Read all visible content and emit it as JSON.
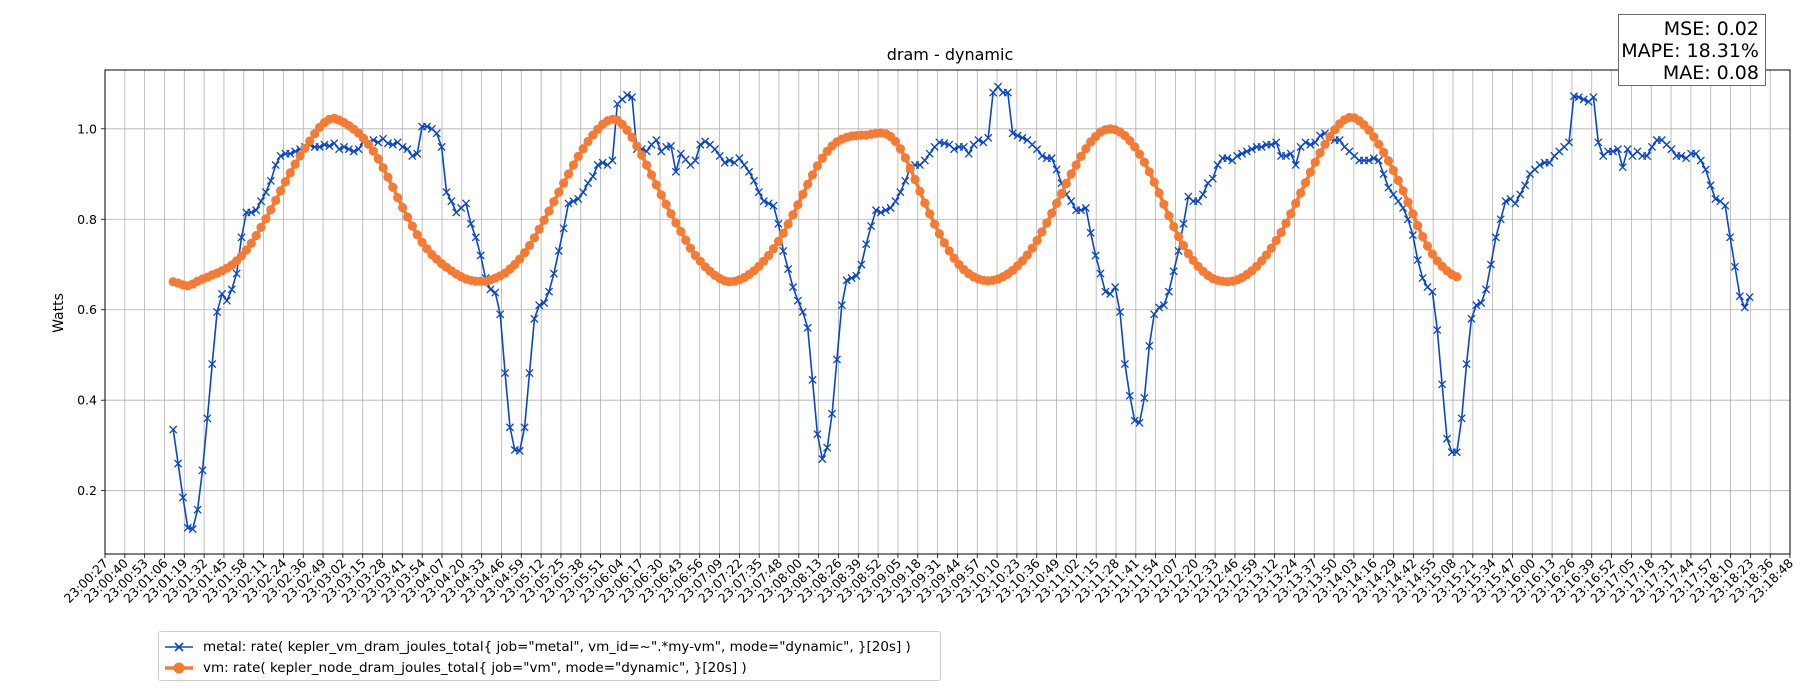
{
  "chart_data": {
    "type": "line",
    "title": "dram - dynamic",
    "xlabel": "",
    "ylabel": "Watts",
    "ylim": [
      0.06,
      1.13
    ],
    "grid": true,
    "y_ticks": [
      "0.2",
      "0.4",
      "0.6",
      "0.8",
      "1.0"
    ],
    "x_ticks": [
      "23:00:27",
      "23:00:40",
      "23:00:53",
      "23:01:06",
      "23:01:19",
      "23:01:32",
      "23:01:45",
      "23:01:58",
      "23:02:11",
      "23:02:24",
      "23:02:36",
      "23:02:49",
      "23:03:02",
      "23:03:15",
      "23:03:28",
      "23:03:41",
      "23:03:54",
      "23:04:07",
      "23:04:20",
      "23:04:33",
      "23:04:46",
      "23:04:59",
      "23:05:12",
      "23:05:25",
      "23:05:38",
      "23:05:51",
      "23:06:04",
      "23:06:17",
      "23:06:30",
      "23:06:43",
      "23:06:56",
      "23:07:09",
      "23:07:22",
      "23:07:35",
      "23:07:48",
      "23:08:00",
      "23:08:13",
      "23:08:26",
      "23:08:39",
      "23:08:52",
      "23:09:05",
      "23:09:18",
      "23:09:31",
      "23:09:44",
      "23:09:57",
      "23:10:10",
      "23:10:23",
      "23:10:36",
      "23:10:49",
      "23:11:02",
      "23:11:15",
      "23:11:28",
      "23:11:41",
      "23:11:54",
      "23:12:07",
      "23:12:20",
      "23:12:33",
      "23:12:46",
      "23:12:59",
      "23:13:12",
      "23:13:24",
      "23:13:37",
      "23:13:50",
      "23:14:03",
      "23:14:16",
      "23:14:29",
      "23:14:42",
      "23:14:55",
      "23:15:08",
      "23:15:21",
      "23:15:34",
      "23:15:47",
      "23:16:00",
      "23:16:13",
      "23:16:26",
      "23:16:39",
      "23:16:52",
      "23:17:05",
      "23:17:18",
      "23:17:31",
      "23:17:44",
      "23:17:57",
      "23:18:10",
      "23:18:23",
      "23:18:36",
      "23:18:48"
    ],
    "x_index_range": [
      0,
      85
    ],
    "legend_placement": "bottom-left (below plot)",
    "series": [
      {
        "name": "metal: rate( kepler_vm_dram_joules_total{ job=\"metal\", vm_id=~\".*my-vm\", mode=\"dynamic\", }[20s] )",
        "color": "#0a46c8",
        "marker": "x",
        "x_start": 3.44,
        "x_step": 0.2462,
        "values": [
          0.335,
          0.26,
          0.185,
          0.118,
          0.115,
          0.158,
          0.245,
          0.36,
          0.48,
          0.595,
          0.635,
          0.62,
          0.645,
          0.68,
          0.76,
          0.815,
          0.815,
          0.82,
          0.84,
          0.86,
          0.885,
          0.92,
          0.94,
          0.945,
          0.945,
          0.95,
          0.955,
          0.96,
          0.965,
          0.96,
          0.96,
          0.965,
          0.962,
          0.968,
          0.955,
          0.96,
          0.955,
          0.95,
          0.955,
          0.972,
          0.968,
          0.975,
          0.97,
          0.978,
          0.968,
          0.965,
          0.97,
          0.96,
          0.955,
          0.94,
          0.945,
          1.005,
          1.005,
          1.0,
          0.99,
          0.96,
          0.86,
          0.84,
          0.815,
          0.825,
          0.835,
          0.79,
          0.76,
          0.72,
          0.67,
          0.645,
          0.638,
          0.59,
          0.46,
          0.34,
          0.29,
          0.288,
          0.34,
          0.46,
          0.58,
          0.61,
          0.615,
          0.64,
          0.68,
          0.73,
          0.78,
          0.835,
          0.84,
          0.845,
          0.86,
          0.88,
          0.895,
          0.92,
          0.925,
          0.92,
          0.93,
          1.055,
          1.065,
          1.075,
          1.07,
          0.955,
          0.955,
          0.95,
          0.965,
          0.975,
          0.95,
          0.96,
          0.962,
          0.905,
          0.945,
          0.932,
          0.92,
          0.93,
          0.965,
          0.972,
          0.965,
          0.955,
          0.94,
          0.925,
          0.93,
          0.925,
          0.935,
          0.92,
          0.905,
          0.885,
          0.86,
          0.84,
          0.835,
          0.83,
          0.79,
          0.73,
          0.69,
          0.65,
          0.62,
          0.595,
          0.56,
          0.445,
          0.325,
          0.27,
          0.295,
          0.37,
          0.49,
          0.61,
          0.665,
          0.67,
          0.675,
          0.7,
          0.745,
          0.785,
          0.82,
          0.815,
          0.82,
          0.825,
          0.84,
          0.86,
          0.885,
          0.912,
          0.92,
          0.92,
          0.93,
          0.945,
          0.96,
          0.97,
          0.968,
          0.965,
          0.955,
          0.96,
          0.96,
          0.945,
          0.965,
          0.975,
          0.97,
          0.98,
          1.08,
          1.093,
          1.08,
          1.08,
          0.99,
          0.985,
          0.98,
          0.975,
          0.965,
          0.955,
          0.94,
          0.935,
          0.935,
          0.91,
          0.88,
          0.855,
          0.84,
          0.82,
          0.82,
          0.825,
          0.77,
          0.72,
          0.68,
          0.64,
          0.635,
          0.65,
          0.595,
          0.48,
          0.41,
          0.355,
          0.35,
          0.405,
          0.52,
          0.59,
          0.605,
          0.61,
          0.64,
          0.685,
          0.73,
          0.79,
          0.85,
          0.84,
          0.84,
          0.855,
          0.88,
          0.89,
          0.92,
          0.935,
          0.935,
          0.93,
          0.94,
          0.945,
          0.95,
          0.955,
          0.96,
          0.96,
          0.965,
          0.965,
          0.97,
          0.94,
          0.94,
          0.945,
          0.92,
          0.96,
          0.97,
          0.965,
          0.97,
          0.985,
          0.99,
          0.98,
          0.975,
          0.975,
          0.96,
          0.95,
          0.94,
          0.93,
          0.93,
          0.93,
          0.935,
          0.93,
          0.9,
          0.87,
          0.855,
          0.84,
          0.825,
          0.8,
          0.765,
          0.71,
          0.67,
          0.65,
          0.64,
          0.555,
          0.435,
          0.315,
          0.285,
          0.285,
          0.36,
          0.48,
          0.58,
          0.61,
          0.615,
          0.645,
          0.7,
          0.76,
          0.8,
          0.84,
          0.845,
          0.835,
          0.855,
          0.875,
          0.9,
          0.91,
          0.92,
          0.925,
          0.925,
          0.94,
          0.95,
          0.96,
          0.97,
          1.072,
          1.07,
          1.065,
          1.06,
          1.07,
          0.97,
          0.94,
          0.95,
          0.95,
          0.955,
          0.915,
          0.955,
          0.94,
          0.95,
          0.94,
          0.94,
          0.96,
          0.975,
          0.975,
          0.965,
          0.955,
          0.94,
          0.94,
          0.935,
          0.945,
          0.945,
          0.93,
          0.91,
          0.875,
          0.845,
          0.84,
          0.83,
          0.76,
          0.695,
          0.63,
          0.605,
          0.628
        ]
      },
      {
        "name": "vm: rate( kepler_node_dram_joules_total{ job=\"vm\", mode=\"dynamic\", }[20s] )",
        "color": "#f57b35",
        "marker": "o",
        "x_start": 3.44,
        "x_step": 0.2462,
        "values": [
          0.662,
          0.659,
          0.655,
          0.653,
          0.657,
          0.663,
          0.668,
          0.672,
          0.677,
          0.681,
          0.686,
          0.692,
          0.699,
          0.708,
          0.719,
          0.732,
          0.747,
          0.764,
          0.782,
          0.801,
          0.821,
          0.842,
          0.863,
          0.883,
          0.903,
          0.922,
          0.94,
          0.957,
          0.973,
          0.989,
          1.003,
          1.014,
          1.021,
          1.023,
          1.019,
          1.014,
          1.007,
          0.999,
          0.99,
          0.979,
          0.966,
          0.951,
          0.934,
          0.914,
          0.893,
          0.871,
          0.848,
          0.826,
          0.805,
          0.785,
          0.766,
          0.749,
          0.735,
          0.722,
          0.712,
          0.702,
          0.694,
          0.686,
          0.679,
          0.673,
          0.668,
          0.665,
          0.663,
          0.663,
          0.663,
          0.666,
          0.67,
          0.675,
          0.681,
          0.69,
          0.7,
          0.712,
          0.726,
          0.742,
          0.759,
          0.778,
          0.798,
          0.818,
          0.839,
          0.86,
          0.88,
          0.9,
          0.92,
          0.939,
          0.956,
          0.972,
          0.986,
          0.999,
          1.01,
          1.018,
          1.021,
          1.019,
          1.01,
          0.997,
          0.981,
          0.962,
          0.942,
          0.92,
          0.898,
          0.876,
          0.854,
          0.833,
          0.812,
          0.792,
          0.773,
          0.754,
          0.736,
          0.72,
          0.707,
          0.695,
          0.685,
          0.676,
          0.669,
          0.664,
          0.662,
          0.663,
          0.666,
          0.671,
          0.678,
          0.686,
          0.696,
          0.707,
          0.72,
          0.735,
          0.751,
          0.769,
          0.789,
          0.81,
          0.832,
          0.855,
          0.877,
          0.898,
          0.918,
          0.935,
          0.95,
          0.962,
          0.971,
          0.977,
          0.981,
          0.984,
          0.985,
          0.986,
          0.986,
          0.988,
          0.99,
          0.991,
          0.989,
          0.983,
          0.972,
          0.956,
          0.936,
          0.913,
          0.888,
          0.862,
          0.836,
          0.812,
          0.789,
          0.768,
          0.748,
          0.73,
          0.714,
          0.7,
          0.689,
          0.68,
          0.673,
          0.668,
          0.665,
          0.664,
          0.665,
          0.668,
          0.673,
          0.679,
          0.687,
          0.697,
          0.708,
          0.721,
          0.736,
          0.753,
          0.772,
          0.792,
          0.813,
          0.835,
          0.857,
          0.879,
          0.9,
          0.92,
          0.939,
          0.956,
          0.971,
          0.983,
          0.993,
          0.998,
          1.0,
          0.998,
          0.993,
          0.985,
          0.974,
          0.96,
          0.944,
          0.926,
          0.905,
          0.882,
          0.858,
          0.833,
          0.808,
          0.784,
          0.762,
          0.742,
          0.724,
          0.709,
          0.696,
          0.685,
          0.676,
          0.669,
          0.665,
          0.663,
          0.662,
          0.663,
          0.666,
          0.671,
          0.678,
          0.686,
          0.696,
          0.708,
          0.721,
          0.736,
          0.753,
          0.771,
          0.791,
          0.812,
          0.835,
          0.858,
          0.881,
          0.904,
          0.926,
          0.947,
          0.966,
          0.983,
          0.998,
          1.011,
          1.02,
          1.025,
          1.024,
          1.018,
          1.009,
          0.997,
          0.982,
          0.966,
          0.948,
          0.929,
          0.908,
          0.886,
          0.863,
          0.838,
          0.812,
          0.786,
          0.762,
          0.741,
          0.723,
          0.708,
          0.696,
          0.686,
          0.678,
          0.673
        ]
      }
    ]
  },
  "stats": {
    "mse": "MSE: 0.02",
    "mape": "MAPE: 18.31%",
    "mae": "MAE: 0.08"
  }
}
